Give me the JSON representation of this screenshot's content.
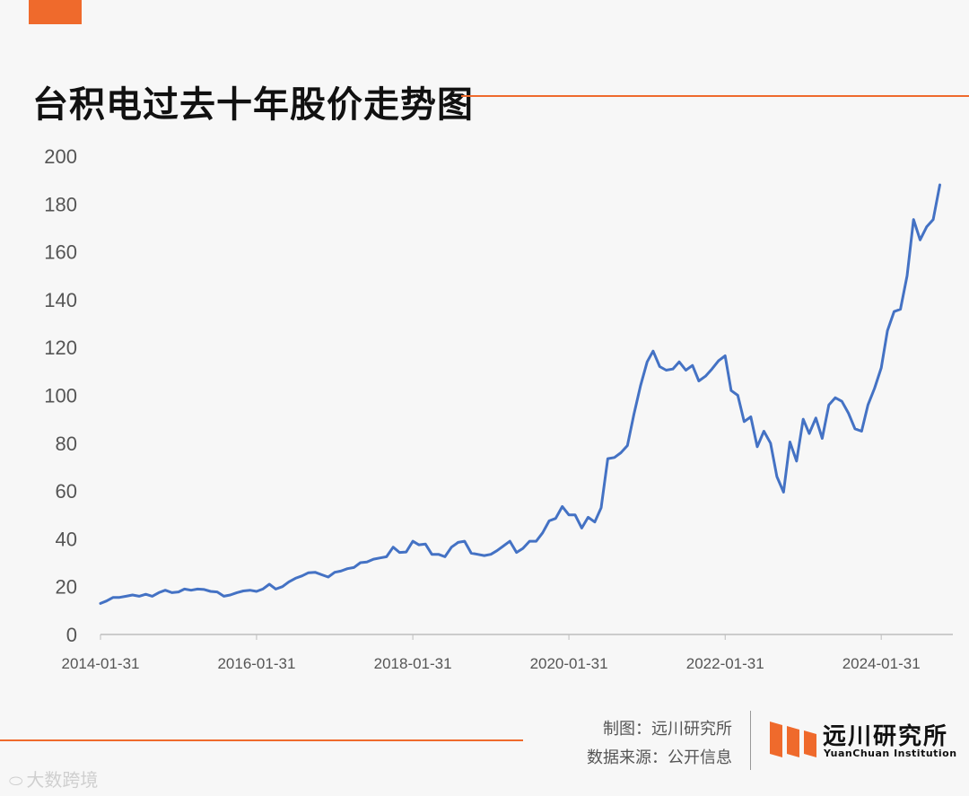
{
  "title": "台积电过去十年股价走势图",
  "colors": {
    "accent": "#ef6a2c",
    "line": "#4472c4",
    "axis": "#bdbdbd",
    "text": "#555555"
  },
  "footer": {
    "maker": "制图：远川研究所",
    "source": "数据来源：公开信息",
    "brand_name": "远川研究所",
    "brand_name_en": "YuanChuan Institution",
    "watermark": "大数跨境",
    "watermark_icon": "weixin-icon"
  },
  "chart_data": {
    "type": "line",
    "title": "台积电过去十年股价走势图",
    "xlabel": "",
    "ylabel": "",
    "ylim": [
      0,
      200
    ],
    "yticks": [
      0,
      20,
      40,
      60,
      80,
      100,
      120,
      140,
      160,
      180,
      200
    ],
    "x_tick_labels": [
      "2014-01-31",
      "2016-01-31",
      "2018-01-31",
      "2020-01-31",
      "2022-01-31",
      "2024-01-31"
    ],
    "grid": false,
    "legend": "none",
    "series": [
      {
        "x": [
          "2014-01-31",
          "2014-02-28",
          "2014-03-31",
          "2014-04-30",
          "2014-05-31",
          "2014-06-30",
          "2014-07-31",
          "2014-08-31",
          "2014-09-30",
          "2014-10-31",
          "2014-11-30",
          "2014-12-31",
          "2015-01-31",
          "2015-02-28",
          "2015-03-31",
          "2015-04-30",
          "2015-05-31",
          "2015-06-30",
          "2015-07-31",
          "2015-08-31",
          "2015-09-30",
          "2015-10-31",
          "2015-11-30",
          "2015-12-31",
          "2016-01-31",
          "2016-02-29",
          "2016-03-31",
          "2016-04-30",
          "2016-05-31",
          "2016-06-30",
          "2016-07-31",
          "2016-08-31",
          "2016-09-30",
          "2016-10-31",
          "2016-11-30",
          "2016-12-31",
          "2017-01-31",
          "2017-02-28",
          "2017-03-31",
          "2017-04-30",
          "2017-05-31",
          "2017-06-30",
          "2017-07-31",
          "2017-08-31",
          "2017-09-30",
          "2017-10-31",
          "2017-11-30",
          "2017-12-31",
          "2018-01-31",
          "2018-02-28",
          "2018-03-31",
          "2018-04-30",
          "2018-05-31",
          "2018-06-30",
          "2018-07-31",
          "2018-08-31",
          "2018-09-30",
          "2018-10-31",
          "2018-11-30",
          "2018-12-31",
          "2019-01-31",
          "2019-02-28",
          "2019-03-31",
          "2019-04-30",
          "2019-05-31",
          "2019-06-30",
          "2019-07-31",
          "2019-08-31",
          "2019-09-30",
          "2019-10-31",
          "2019-11-30",
          "2019-12-31",
          "2020-01-31",
          "2020-02-29",
          "2020-03-31",
          "2020-04-30",
          "2020-05-31",
          "2020-06-30",
          "2020-07-31",
          "2020-08-31",
          "2020-09-30",
          "2020-10-31",
          "2020-11-30",
          "2020-12-31",
          "2021-01-31",
          "2021-02-28",
          "2021-03-31",
          "2021-04-30",
          "2021-05-31",
          "2021-06-30",
          "2021-07-31",
          "2021-08-31",
          "2021-09-30",
          "2021-10-31",
          "2021-11-30",
          "2021-12-31",
          "2022-01-31",
          "2022-02-28",
          "2022-03-31",
          "2022-04-30",
          "2022-05-31",
          "2022-06-30",
          "2022-07-31",
          "2022-08-31",
          "2022-09-30",
          "2022-10-31",
          "2022-11-30",
          "2022-12-31",
          "2023-01-31",
          "2023-02-28",
          "2023-03-31",
          "2023-04-30",
          "2023-05-31",
          "2023-06-30",
          "2023-07-31",
          "2023-08-31",
          "2023-09-30",
          "2023-10-31",
          "2023-11-30",
          "2023-12-31",
          "2024-01-31",
          "2024-02-29",
          "2024-03-31",
          "2024-04-30",
          "2024-05-31",
          "2024-06-30",
          "2024-07-31",
          "2024-08-31",
          "2024-09-30",
          "2024-10-31"
        ],
        "values": [
          13,
          14,
          15.5,
          15.5,
          16,
          16.5,
          16,
          16.8,
          16,
          17.5,
          18.5,
          17.5,
          17.8,
          19,
          18.5,
          19,
          18.8,
          18,
          17.8,
          16,
          16.5,
          17.5,
          18.2,
          18.5,
          18,
          19,
          21,
          19,
          20,
          22,
          23.5,
          24.5,
          25.8,
          26,
          25,
          24,
          26,
          26.5,
          27.5,
          28,
          30,
          30.3,
          31.5,
          32,
          32.5,
          36.5,
          34.3,
          34.5,
          39,
          37.5,
          37.8,
          33.5,
          33.5,
          32.5,
          36.5,
          38.5,
          39,
          34,
          33.5,
          33,
          33.5,
          35,
          37,
          39,
          34.3,
          36,
          39,
          39,
          42.5,
          47.5,
          48.5,
          53.5,
          50,
          50,
          44.5,
          49,
          47,
          53,
          73.5,
          74,
          76,
          79,
          92,
          104,
          114,
          118.5,
          112,
          110.5,
          111,
          114,
          110.5,
          112.5,
          106,
          108,
          111,
          114.5,
          116.5,
          102,
          100,
          89,
          91,
          78.5,
          85,
          80,
          66,
          59.5,
          80.5,
          72.5,
          90,
          84,
          90.5,
          82,
          96,
          99,
          97.5,
          92.5,
          86,
          85,
          96,
          103,
          111.5,
          127,
          135,
          136,
          150,
          173.5,
          165,
          170.5,
          173.5,
          188
        ]
      }
    ]
  }
}
